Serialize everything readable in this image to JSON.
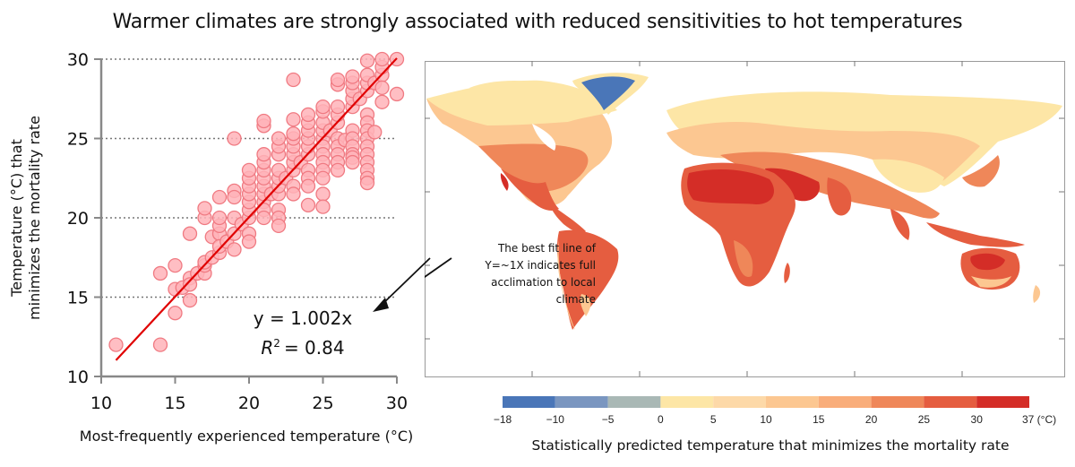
{
  "title": "Warmer climates are strongly associated with reduced sensitivities to hot temperatures",
  "chart_data": [
    {
      "type": "scatter",
      "title": "",
      "xlabel": "Most-frequently experienced temperature (°C)",
      "ylabel_lines": [
        "Temperature (°C) that",
        "minimizes the mortality rate"
      ],
      "xlim": [
        10,
        30
      ],
      "ylim": [
        10,
        30
      ],
      "xticks": [
        10,
        15,
        20,
        25,
        30
      ],
      "yticks": [
        10,
        15,
        20,
        25,
        30
      ],
      "grid": "horizontal dotted",
      "marker_color": "#ffb3b8",
      "marker_edge": "#f07a82",
      "fit_line": {
        "slope": 1.002,
        "intercept": 0,
        "x_range": [
          11,
          30
        ],
        "color": "#e00000"
      },
      "equation": "y = 1.002x",
      "r2_label": "R",
      "r2_value": "= 0.84",
      "points": [
        [
          11,
          12
        ],
        [
          14,
          16.5
        ],
        [
          14,
          12
        ],
        [
          15,
          17
        ],
        [
          15,
          14
        ],
        [
          15,
          15.5
        ],
        [
          15.5,
          15.6
        ],
        [
          16,
          16.2
        ],
        [
          16,
          15.8
        ],
        [
          16,
          14.8
        ],
        [
          16,
          19
        ],
        [
          16.5,
          16.5
        ],
        [
          17,
          16.5
        ],
        [
          17,
          17
        ],
        [
          17,
          17.2
        ],
        [
          17,
          20
        ],
        [
          17,
          20.6
        ],
        [
          17.5,
          18.8
        ],
        [
          17.5,
          17.5
        ],
        [
          18,
          19
        ],
        [
          18,
          19.5
        ],
        [
          18,
          20
        ],
        [
          18,
          21.3
        ],
        [
          18,
          17.8
        ],
        [
          18,
          18.2
        ],
        [
          18.5,
          18.5
        ],
        [
          19,
          19
        ],
        [
          19,
          20
        ],
        [
          19,
          21.7
        ],
        [
          19,
          21.3
        ],
        [
          19,
          25
        ],
        [
          19,
          18
        ],
        [
          19.5,
          19.6
        ],
        [
          20,
          20
        ],
        [
          20,
          20.5
        ],
        [
          20,
          21
        ],
        [
          20,
          21.5
        ],
        [
          20,
          22
        ],
        [
          20,
          22.5
        ],
        [
          20,
          23
        ],
        [
          20,
          19
        ],
        [
          20,
          18.5
        ],
        [
          21,
          21
        ],
        [
          21,
          21.5
        ],
        [
          21,
          22
        ],
        [
          21,
          22.5
        ],
        [
          21,
          23
        ],
        [
          21,
          23.5
        ],
        [
          21,
          24
        ],
        [
          21,
          25.8
        ],
        [
          21,
          26.1
        ],
        [
          21,
          20.5
        ],
        [
          21,
          20
        ],
        [
          21.5,
          21.5
        ],
        [
          22,
          21.5
        ],
        [
          22,
          22
        ],
        [
          22,
          22.5
        ],
        [
          22,
          23
        ],
        [
          22,
          24
        ],
        [
          22,
          24.5
        ],
        [
          22,
          25
        ],
        [
          22,
          20.5
        ],
        [
          22,
          20
        ],
        [
          22,
          19.5
        ],
        [
          22.5,
          22.5
        ],
        [
          23,
          23
        ],
        [
          23,
          23.5
        ],
        [
          23,
          24
        ],
        [
          23,
          24.5
        ],
        [
          23,
          25
        ],
        [
          23,
          25.3
        ],
        [
          23,
          26.2
        ],
        [
          23,
          28.7
        ],
        [
          23,
          22
        ],
        [
          23,
          21.5
        ],
        [
          23.5,
          23.5
        ],
        [
          24,
          24
        ],
        [
          24,
          24.5
        ],
        [
          24,
          25
        ],
        [
          24,
          25.5
        ],
        [
          24,
          26
        ],
        [
          24,
          26.5
        ],
        [
          24,
          23
        ],
        [
          24,
          22.5
        ],
        [
          24,
          20.8
        ],
        [
          24,
          22
        ],
        [
          25,
          25
        ],
        [
          25,
          25.5
        ],
        [
          25,
          26
        ],
        [
          25,
          26.7
        ],
        [
          25,
          27
        ],
        [
          25,
          24.5
        ],
        [
          25,
          24
        ],
        [
          25,
          23.5
        ],
        [
          25,
          23
        ],
        [
          25,
          22.5
        ],
        [
          25,
          21.5
        ],
        [
          25,
          20.7
        ],
        [
          25.5,
          25.5
        ],
        [
          26,
          26
        ],
        [
          26,
          26.5
        ],
        [
          26,
          25
        ],
        [
          26,
          24.5
        ],
        [
          26,
          24
        ],
        [
          26,
          23.5
        ],
        [
          26,
          27
        ],
        [
          26,
          28.4
        ],
        [
          26,
          28.7
        ],
        [
          26,
          23
        ],
        [
          26.5,
          24.9
        ],
        [
          27,
          27
        ],
        [
          27,
          27.5
        ],
        [
          27,
          28
        ],
        [
          27,
          28.5
        ],
        [
          27,
          28.9
        ],
        [
          27,
          25.5
        ],
        [
          27,
          25
        ],
        [
          27,
          24.5
        ],
        [
          27,
          24
        ],
        [
          27,
          23.8
        ],
        [
          27,
          23.5
        ],
        [
          27.5,
          27.5
        ],
        [
          28,
          28
        ],
        [
          28,
          28.5
        ],
        [
          28,
          29
        ],
        [
          28,
          29.9
        ],
        [
          28,
          26.5
        ],
        [
          28,
          26
        ],
        [
          28,
          25.5
        ],
        [
          28,
          25
        ],
        [
          28,
          24.5
        ],
        [
          28,
          24
        ],
        [
          28,
          23.5
        ],
        [
          28,
          23
        ],
        [
          28,
          22.5
        ],
        [
          28,
          22.2
        ],
        [
          28.5,
          28.5
        ],
        [
          28.5,
          25.4
        ],
        [
          29,
          29
        ],
        [
          29,
          29.5
        ],
        [
          29,
          30
        ],
        [
          29,
          27.3
        ],
        [
          29,
          28.2
        ],
        [
          30,
          30
        ],
        [
          30,
          27.8
        ]
      ]
    },
    {
      "type": "heatmap",
      "title": "Statistically predicted temperature that minimizes the mortality rate",
      "subject": "world map",
      "colorbar": {
        "ticks": [
          "−18",
          "−10",
          "−5",
          "0",
          "5",
          "10",
          "15",
          "20",
          "25",
          "30",
          "37 (°C)"
        ],
        "bins": [
          {
            "from": -18,
            "to": -10,
            "color": "#4a76b8"
          },
          {
            "from": -10,
            "to": -5,
            "color": "#7a96c0"
          },
          {
            "from": -5,
            "to": 0,
            "color": "#a9b8b5"
          },
          {
            "from": 0,
            "to": 5,
            "color": "#fde6a6"
          },
          {
            "from": 5,
            "to": 10,
            "color": "#fdd9a8"
          },
          {
            "from": 10,
            "to": 15,
            "color": "#fcc791"
          },
          {
            "from": 15,
            "to": 20,
            "color": "#f9ad7a"
          },
          {
            "from": 20,
            "to": 25,
            "color": "#ef8759"
          },
          {
            "from": 25,
            "to": 30,
            "color": "#e55d40"
          },
          {
            "from": 30,
            "to": 37,
            "color": "#d42d27"
          }
        ]
      }
    }
  ],
  "annotation": {
    "lines": [
      "The best fit line of",
      "Y=~1X indicates full",
      "acclimation to local",
      "climate"
    ]
  }
}
